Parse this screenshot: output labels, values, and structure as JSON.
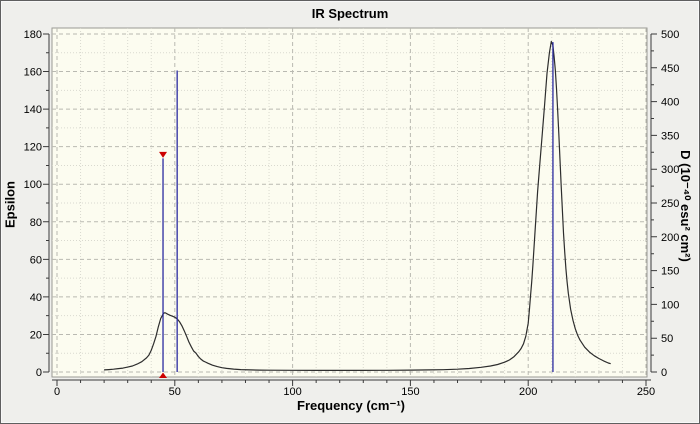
{
  "panel": {
    "title": "IR Spectrum"
  },
  "chart_data": {
    "type": "line",
    "title": "IR Spectrum",
    "xlabel": "Frequency (cm⁻¹)",
    "ylabel_left": "Epsilon",
    "ylabel_right": "D (10⁻⁴⁰ esu² cm²)",
    "xlim": [
      0,
      250
    ],
    "ylim_left": [
      0,
      180
    ],
    "ylim_right": [
      0,
      500
    ],
    "x_ticks": [
      0,
      50,
      100,
      150,
      200,
      250
    ],
    "x_minor_step": 10,
    "y_left_ticks": [
      0,
      20,
      40,
      60,
      80,
      100,
      120,
      140,
      160,
      180
    ],
    "y_left_minor_step": 10,
    "y_right_ticks": [
      0,
      50,
      100,
      150,
      200,
      250,
      300,
      350,
      400,
      450,
      500
    ],
    "y_right_minor_step": 25,
    "grid": {
      "major": "dashed",
      "minor": "dotted",
      "on": true
    },
    "legend": "none",
    "plot_bg": "#fcfcf0",
    "curve": {
      "name": "broadened-epsilon-spectrum",
      "color": "#2d2d2d",
      "axis": "left",
      "points": [
        [
          20,
          1.1
        ],
        [
          22,
          1.3
        ],
        [
          24,
          1.5
        ],
        [
          26,
          1.8
        ],
        [
          28,
          2.1
        ],
        [
          30,
          2.6
        ],
        [
          32,
          3.2
        ],
        [
          34,
          4.2
        ],
        [
          36,
          5.5
        ],
        [
          38,
          7.5
        ],
        [
          39,
          9
        ],
        [
          40,
          11.5
        ],
        [
          41,
          15
        ],
        [
          42,
          19
        ],
        [
          43,
          24
        ],
        [
          44,
          28.5
        ],
        [
          45,
          30.8
        ],
        [
          45.5,
          31.5
        ],
        [
          46,
          31.5
        ],
        [
          47,
          30.8
        ],
        [
          48,
          30.2
        ],
        [
          49,
          29.7
        ],
        [
          50,
          29.2
        ],
        [
          51,
          28.3
        ],
        [
          52,
          26.8
        ],
        [
          53,
          24.6
        ],
        [
          54,
          22
        ],
        [
          55,
          19
        ],
        [
          56,
          16
        ],
        [
          57,
          13.4
        ],
        [
          58,
          11.2
        ],
        [
          59,
          10
        ],
        [
          60,
          8.2
        ],
        [
          61,
          6.9
        ],
        [
          62,
          5.9
        ],
        [
          63,
          5.3
        ],
        [
          64,
          4.7
        ],
        [
          66,
          3.6
        ],
        [
          68,
          2.9
        ],
        [
          70,
          2.3
        ],
        [
          72,
          1.9
        ],
        [
          75,
          1.55
        ],
        [
          78,
          1.3
        ],
        [
          82,
          1.1
        ],
        [
          86,
          1.0
        ],
        [
          90,
          0.95
        ],
        [
          100,
          0.9
        ],
        [
          110,
          0.85
        ],
        [
          120,
          0.85
        ],
        [
          130,
          0.85
        ],
        [
          140,
          0.9
        ],
        [
          150,
          1.0
        ],
        [
          158,
          1.1
        ],
        [
          164,
          1.25
        ],
        [
          170,
          1.5
        ],
        [
          175,
          1.85
        ],
        [
          180,
          2.5
        ],
        [
          184,
          3.2
        ],
        [
          187,
          4.0
        ],
        [
          190,
          5.2
        ],
        [
          192,
          6.4
        ],
        [
          194,
          8.2
        ],
        [
          196,
          10.8
        ],
        [
          197,
          12.5
        ],
        [
          198,
          15
        ],
        [
          199,
          19
        ],
        [
          200,
          26
        ],
        [
          200.5,
          33
        ],
        [
          201,
          41
        ],
        [
          201.5,
          48
        ],
        [
          202,
          57
        ],
        [
          202.5,
          67
        ],
        [
          203,
          77
        ],
        [
          203.5,
          86
        ],
        [
          204,
          96
        ],
        [
          205,
          112
        ],
        [
          206,
          127
        ],
        [
          207,
          143
        ],
        [
          208,
          159
        ],
        [
          209,
          170
        ],
        [
          209.8,
          176
        ],
        [
          210.5,
          174
        ],
        [
          211,
          168
        ],
        [
          211.5,
          161
        ],
        [
          212,
          151
        ],
        [
          212.5,
          140
        ],
        [
          213,
          127
        ],
        [
          213.5,
          113
        ],
        [
          214,
          99
        ],
        [
          214.5,
          86
        ],
        [
          215,
          74
        ],
        [
          215.5,
          64
        ],
        [
          216,
          55
        ],
        [
          216.5,
          48
        ],
        [
          217,
          42
        ],
        [
          218,
          33.5
        ],
        [
          219,
          27.5
        ],
        [
          220,
          23
        ],
        [
          221,
          19.5
        ],
        [
          222,
          17
        ],
        [
          224,
          13.2
        ],
        [
          226,
          10.6
        ],
        [
          228,
          8.7
        ],
        [
          230,
          7.2
        ],
        [
          232,
          5.9
        ],
        [
          234,
          4.8
        ],
        [
          235,
          4.4
        ]
      ]
    },
    "sticks": {
      "name": "mode-intensity-sticks",
      "color": "#2a2aa0",
      "axis": "right",
      "items": [
        {
          "freq": 45,
          "d": 316
        },
        {
          "freq": 51,
          "d": 446
        },
        {
          "freq": 210.5,
          "d": 488
        }
      ]
    },
    "selected_mode": {
      "freq": 45,
      "d": 316,
      "marker_color": "#cc0000"
    }
  },
  "colors": {
    "panel_bg": "#efefec",
    "plot_bg": "#fcfcf0",
    "plot_border": "#9a9a94",
    "grid_major": "#b9b9b1",
    "grid_minor": "#d9d9cf",
    "axis_line": "#3a3a3a",
    "curve": "#2d2d2d",
    "stick": "#2a2aa0",
    "marker": "#cc0000"
  }
}
